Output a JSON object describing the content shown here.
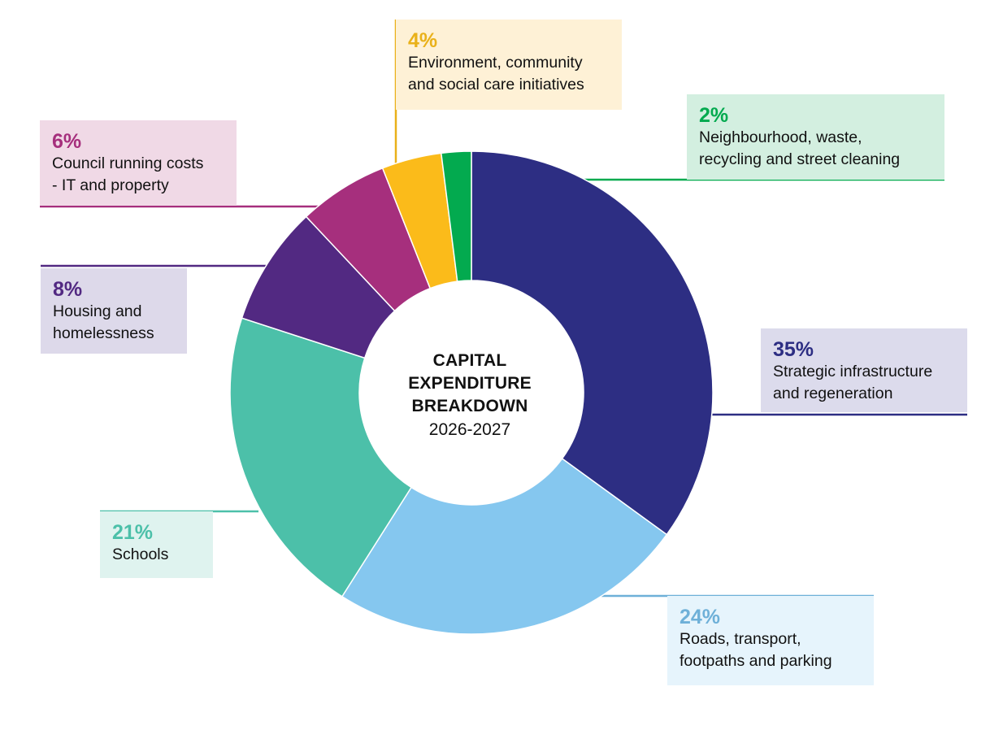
{
  "center": {
    "title_lines": [
      "CAPITAL",
      "EXPENDITURE",
      "BREAKDOWN"
    ],
    "subtitle": "2026-2027"
  },
  "chart_data": {
    "type": "pie",
    "donut": true,
    "title": "CAPITAL EXPENDITURE BREAKDOWN",
    "subtitle": "2026-2027",
    "unit": "%",
    "slices": [
      {
        "label": "Strategic infrastructure and regeneration",
        "label_lines": [
          "Strategic infrastructure",
          "and regeneration"
        ],
        "value": 35,
        "value_label": "35%",
        "color": "#2d2e83",
        "text_color": "#2d2e83",
        "bg_color": "#dcdbec"
      },
      {
        "label": "Roads, transport, footpaths and parking",
        "label_lines": [
          "Roads, transport,",
          "footpaths and parking"
        ],
        "value": 24,
        "value_label": "24%",
        "color": "#85c7ef",
        "text_color": "#6eb0d8",
        "bg_color": "#e6f4fc"
      },
      {
        "label": "Schools",
        "label_lines": [
          "Schools"
        ],
        "value": 21,
        "value_label": "21%",
        "color": "#4cc0a9",
        "text_color": "#4cc0a9",
        "bg_color": "#dff3ef"
      },
      {
        "label": "Housing and homelessness",
        "label_lines": [
          "Housing and",
          "homelessness"
        ],
        "value": 8,
        "value_label": "8%",
        "color": "#522982",
        "text_color": "#522982",
        "bg_color": "#ddd9ea"
      },
      {
        "label": "Council running costs - IT and property",
        "label_lines": [
          "Council running costs",
          "- IT and property"
        ],
        "value": 6,
        "value_label": "6%",
        "color": "#a62f7d",
        "text_color": "#a62f7d",
        "bg_color": "#f0d9e6"
      },
      {
        "label": "Environment, community and social care initiatives",
        "label_lines": [
          "Environment, community",
          "and social care initiatives"
        ],
        "value": 4,
        "value_label": "4%",
        "color": "#fbbb1a",
        "text_color": "#e9b11a",
        "bg_color": "#fef1d6"
      },
      {
        "label": "Neighbourhood, waste, recycling and street cleaning",
        "label_lines": [
          "Neighbourhood, waste,",
          "recycling and street cleaning"
        ],
        "value": 2,
        "value_label": "2%",
        "color": "#03aa4f",
        "text_color": "#03aa4f",
        "bg_color": "#d3efe0"
      }
    ]
  }
}
